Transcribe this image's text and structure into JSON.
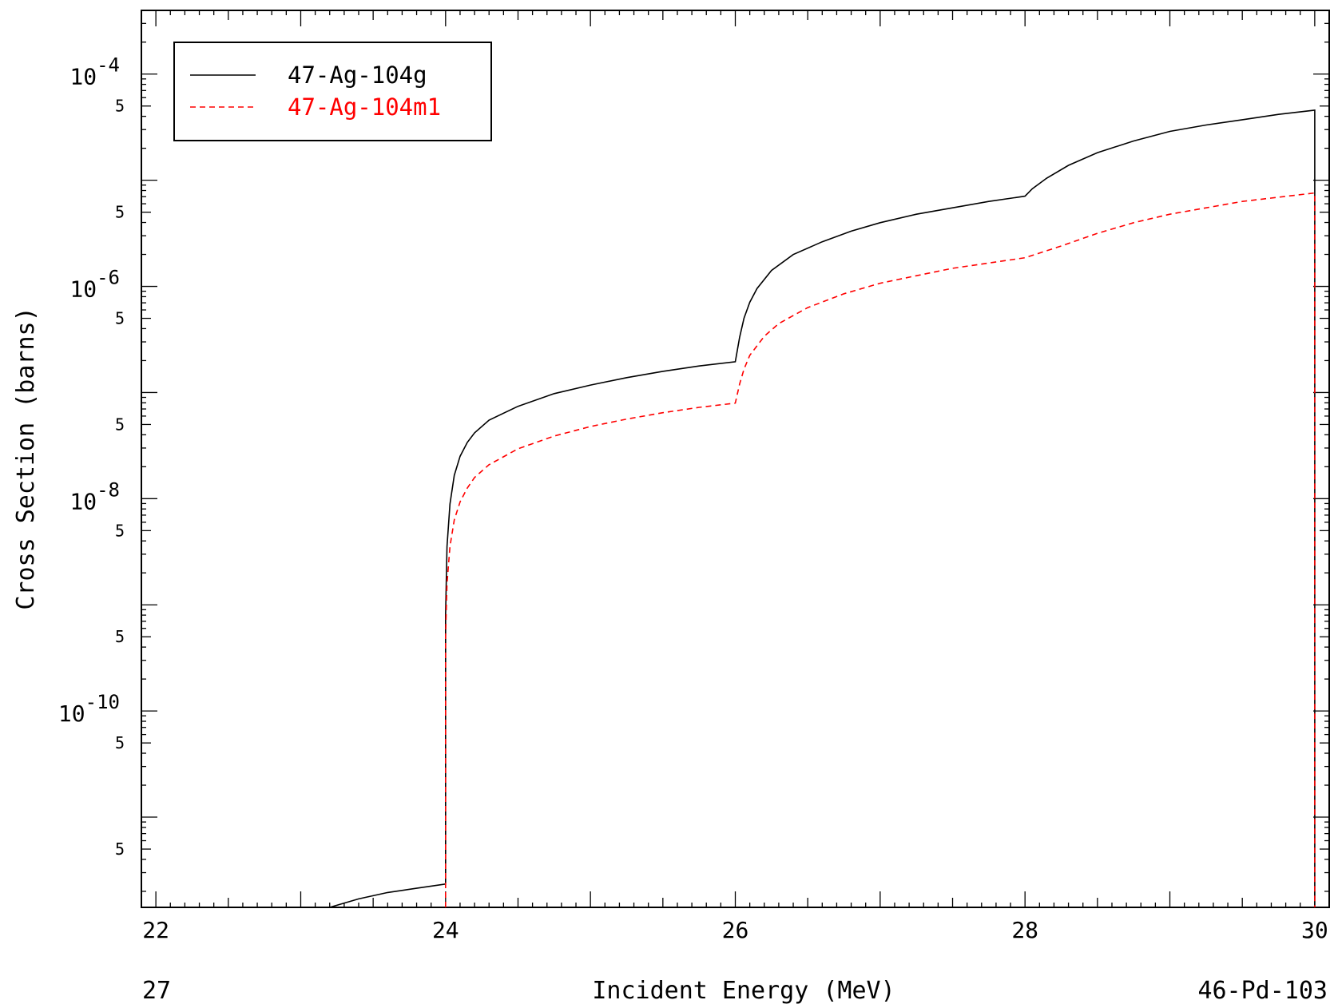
{
  "chart_data": {
    "type": "line",
    "xlabel": "Incident Energy (MeV)",
    "ylabel": "Cross Section (barns)",
    "x_scale": "linear",
    "y_scale": "log",
    "xlim": [
      21.9,
      30.1
    ],
    "ylim_log10": [
      -11.85,
      -3.4
    ],
    "x_ticks": [
      "22",
      "24",
      "26",
      "28",
      "30"
    ],
    "y_decade_labels": [
      {
        "base": "10",
        "exp": "-4",
        "log10": -4
      },
      {
        "base": "10",
        "exp": "-6",
        "log10": -6
      },
      {
        "base": "10",
        "exp": "-8",
        "log10": -8
      },
      {
        "base": "10",
        "exp": "-10",
        "log10": -10
      }
    ],
    "y_five_label": "5",
    "legend_position": "top-left",
    "series": [
      {
        "name": "47-Ag-104g",
        "color": "#000000",
        "dash": "solid",
        "points_log10": [
          [
            23.2,
            -11.85
          ],
          [
            23.4,
            -11.77
          ],
          [
            23.6,
            -11.71
          ],
          [
            23.8,
            -11.67
          ],
          [
            24.0,
            -11.63
          ],
          [
            24.0,
            -9.1
          ],
          [
            24.01,
            -8.45
          ],
          [
            24.03,
            -8.05
          ],
          [
            24.06,
            -7.78
          ],
          [
            24.1,
            -7.6
          ],
          [
            24.15,
            -7.47
          ],
          [
            24.2,
            -7.38
          ],
          [
            24.3,
            -7.26
          ],
          [
            24.5,
            -7.13
          ],
          [
            24.75,
            -7.01
          ],
          [
            25.0,
            -6.93
          ],
          [
            25.25,
            -6.86
          ],
          [
            25.5,
            -6.8
          ],
          [
            25.75,
            -6.75
          ],
          [
            26.0,
            -6.71
          ],
          [
            26.03,
            -6.48
          ],
          [
            26.06,
            -6.3
          ],
          [
            26.1,
            -6.15
          ],
          [
            26.15,
            -6.02
          ],
          [
            26.25,
            -5.85
          ],
          [
            26.4,
            -5.7
          ],
          [
            26.6,
            -5.58
          ],
          [
            26.8,
            -5.48
          ],
          [
            27.0,
            -5.4
          ],
          [
            27.25,
            -5.32
          ],
          [
            27.5,
            -5.26
          ],
          [
            27.75,
            -5.2
          ],
          [
            28.0,
            -5.15
          ],
          [
            28.05,
            -5.08
          ],
          [
            28.15,
            -4.98
          ],
          [
            28.3,
            -4.86
          ],
          [
            28.5,
            -4.74
          ],
          [
            28.75,
            -4.63
          ],
          [
            29.0,
            -4.54
          ],
          [
            29.25,
            -4.48
          ],
          [
            29.5,
            -4.43
          ],
          [
            29.75,
            -4.38
          ],
          [
            30.0,
            -4.34
          ],
          [
            30.0,
            -11.85
          ]
        ]
      },
      {
        "name": "47-Ag-104m1",
        "color": "#ff0000",
        "dash": "dashed",
        "points_log10": [
          [
            24.0,
            -11.85
          ],
          [
            24.0,
            -9.3
          ],
          [
            24.01,
            -8.8
          ],
          [
            24.03,
            -8.45
          ],
          [
            24.06,
            -8.2
          ],
          [
            24.1,
            -8.03
          ],
          [
            24.15,
            -7.9
          ],
          [
            24.2,
            -7.8
          ],
          [
            24.3,
            -7.68
          ],
          [
            24.5,
            -7.53
          ],
          [
            24.75,
            -7.41
          ],
          [
            25.0,
            -7.32
          ],
          [
            25.25,
            -7.25
          ],
          [
            25.5,
            -7.19
          ],
          [
            25.75,
            -7.14
          ],
          [
            26.0,
            -7.1
          ],
          [
            26.03,
            -6.92
          ],
          [
            26.06,
            -6.78
          ],
          [
            26.1,
            -6.65
          ],
          [
            26.2,
            -6.47
          ],
          [
            26.3,
            -6.35
          ],
          [
            26.5,
            -6.2
          ],
          [
            26.75,
            -6.07
          ],
          [
            27.0,
            -5.97
          ],
          [
            27.25,
            -5.9
          ],
          [
            27.5,
            -5.83
          ],
          [
            27.75,
            -5.78
          ],
          [
            28.0,
            -5.73
          ],
          [
            28.25,
            -5.62
          ],
          [
            28.5,
            -5.5
          ],
          [
            28.75,
            -5.4
          ],
          [
            29.0,
            -5.32
          ],
          [
            29.25,
            -5.26
          ],
          [
            29.5,
            -5.2
          ],
          [
            29.75,
            -5.16
          ],
          [
            30.0,
            -5.12
          ],
          [
            30.0,
            -11.85
          ]
        ]
      }
    ]
  },
  "footer": {
    "left_label": "27",
    "right_label": "46-Pd-103"
  }
}
